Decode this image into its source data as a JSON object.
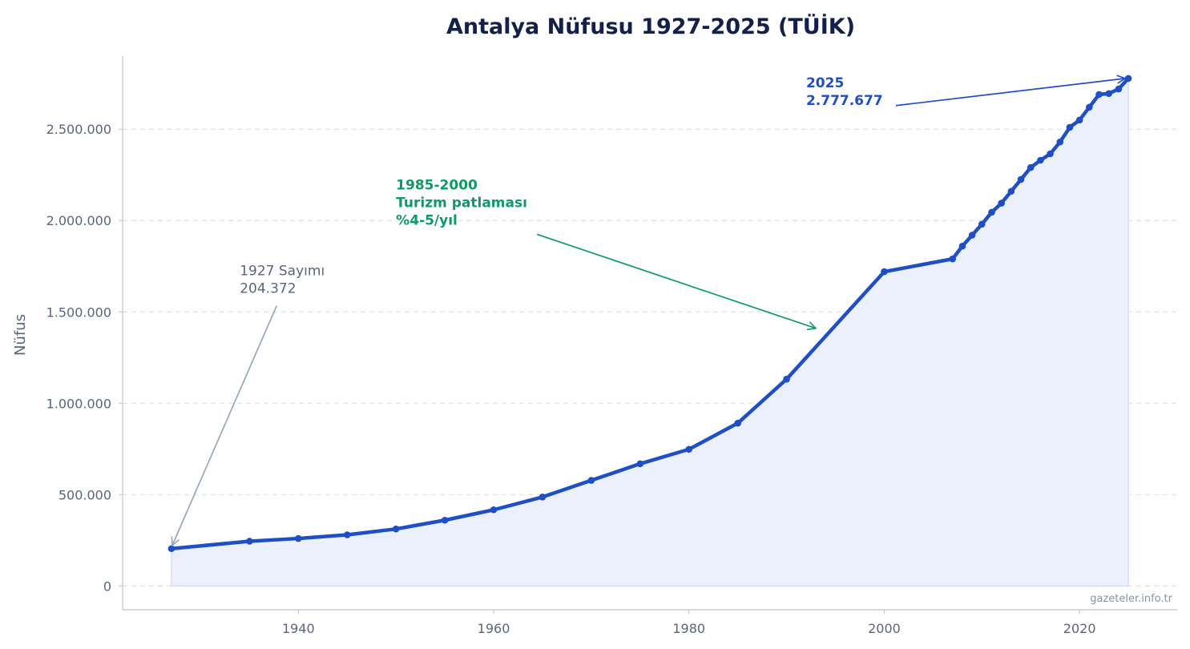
{
  "chart_data": {
    "type": "line",
    "title": "Antalya Nüfusu 1927-2025 (TÜİK)",
    "xlabel": "",
    "ylabel": "Nüfus",
    "xlim": [
      1922,
      2030
    ],
    "ylim": [
      -130000,
      2900000
    ],
    "x_ticks": [
      1940,
      1960,
      1980,
      2000,
      2020
    ],
    "y_ticks": [
      0,
      500000,
      1000000,
      1500000,
      2000000,
      2500000
    ],
    "y_tick_labels": [
      "0",
      "500.000",
      "1.000.000",
      "1.500.000",
      "2.000.000",
      "2.500.000"
    ],
    "grid": "y-dashed",
    "area_fill": true,
    "series": [
      {
        "x": [
          1927,
          1935,
          1940,
          1945,
          1950,
          1955,
          1960,
          1965,
          1970,
          1975,
          1980,
          1985,
          1990,
          2000,
          2007,
          2008,
          2009,
          2010,
          2011,
          2012,
          2013,
          2014,
          2015,
          2016,
          2017,
          2018,
          2019,
          2020,
          2021,
          2022,
          2023,
          2024,
          2025
        ],
        "values": [
          204372,
          245000,
          260000,
          280000,
          312000,
          360000,
          417000,
          487000,
          578000,
          669000,
          748000,
          891000,
          1132000,
          1720000,
          1790000,
          1860000,
          1920000,
          1980000,
          2045000,
          2095000,
          2160000,
          2225000,
          2290000,
          2330000,
          2365000,
          2430000,
          2510000,
          2550000,
          2620000,
          2690000,
          2695000,
          2720000,
          2777677
        ]
      }
    ],
    "annotations": [
      {
        "text": [
          "1927 Sayımı",
          "204.372"
        ],
        "target_x": 1927,
        "target_y": 204372,
        "text_x": 1934,
        "text_y": 1700000
      },
      {
        "text": [
          "1985-2000",
          "Turizm patlaması",
          "%4-5/yıl"
        ],
        "target_x": 1993,
        "target_y": 1410000,
        "text_x": 1950,
        "text_y": 2170000
      },
      {
        "text": [
          "2025",
          "2.777.677"
        ],
        "target_x": 2025,
        "target_y": 2777677,
        "text_x": 1992,
        "text_y": 2730000
      }
    ],
    "source": "gazeteler.info.tr",
    "colors": {
      "line": "#1f4fc6",
      "area": "#ecf0fc",
      "grid": "#dde2ea",
      "axis": "#c7ccd6",
      "annotation_gray": "#9aa6b7",
      "annotation_green": "#0e9a66",
      "annotation_blue": "#1f4fc6",
      "title": "#13214a"
    }
  }
}
